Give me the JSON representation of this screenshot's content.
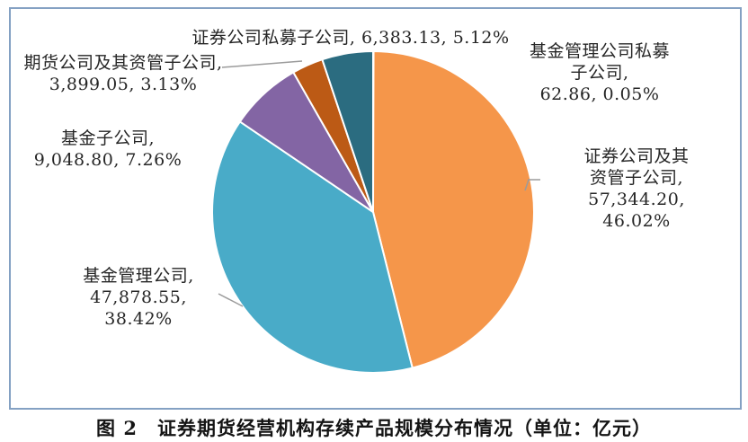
{
  "figure": {
    "caption": "图 2　证券期货经营机构存续产品规模分布情况（单位：亿元）"
  },
  "chart_data": {
    "type": "pie",
    "title": "证券期货经营机构存续产品规模分布情况",
    "unit": "亿元",
    "start_angle_deg": 0,
    "direction": "clockwise",
    "legend_position": "none",
    "label_format": "name, value, percent",
    "slices": [
      {
        "name": "基金管理公司私募子公司",
        "value": 62.86,
        "pct": 0.05,
        "color": "#ffffff",
        "label": "基金管理公司私募子公司,\n62.86, 0.05%"
      },
      {
        "name": "证券公司及其资管子公司",
        "value": 57344.2,
        "pct": 46.02,
        "color": "#f5964a",
        "label": "证券公司及其资管子公司,\n57,344.20, 46.02%"
      },
      {
        "name": "基金管理公司",
        "value": 47878.55,
        "pct": 38.42,
        "color": "#49abc8",
        "label": "基金管理公司,\n47,878.55,\n38.42%"
      },
      {
        "name": "基金子公司",
        "value": 9048.8,
        "pct": 7.26,
        "color": "#8365a4",
        "label": "基金子公司,\n9,048.80, 7.26%"
      },
      {
        "name": "期货公司及其资管子公司",
        "value": 3899.05,
        "pct": 3.13,
        "color": "#bc5a15",
        "label": "期货公司及其资管子公司,\n3,899.05, 3.13%"
      },
      {
        "name": "证券公司私募子公司",
        "value": 6383.13,
        "pct": 5.12,
        "color": "#2b6c80",
        "label": "证券公司私募子公司, 6,383.13, 5.12%"
      }
    ],
    "colors": {
      "slice_border": "#ffffff",
      "leader_line": "#9b9b9b",
      "frame_border": "#84a1c3",
      "label_text": "#262626"
    }
  }
}
